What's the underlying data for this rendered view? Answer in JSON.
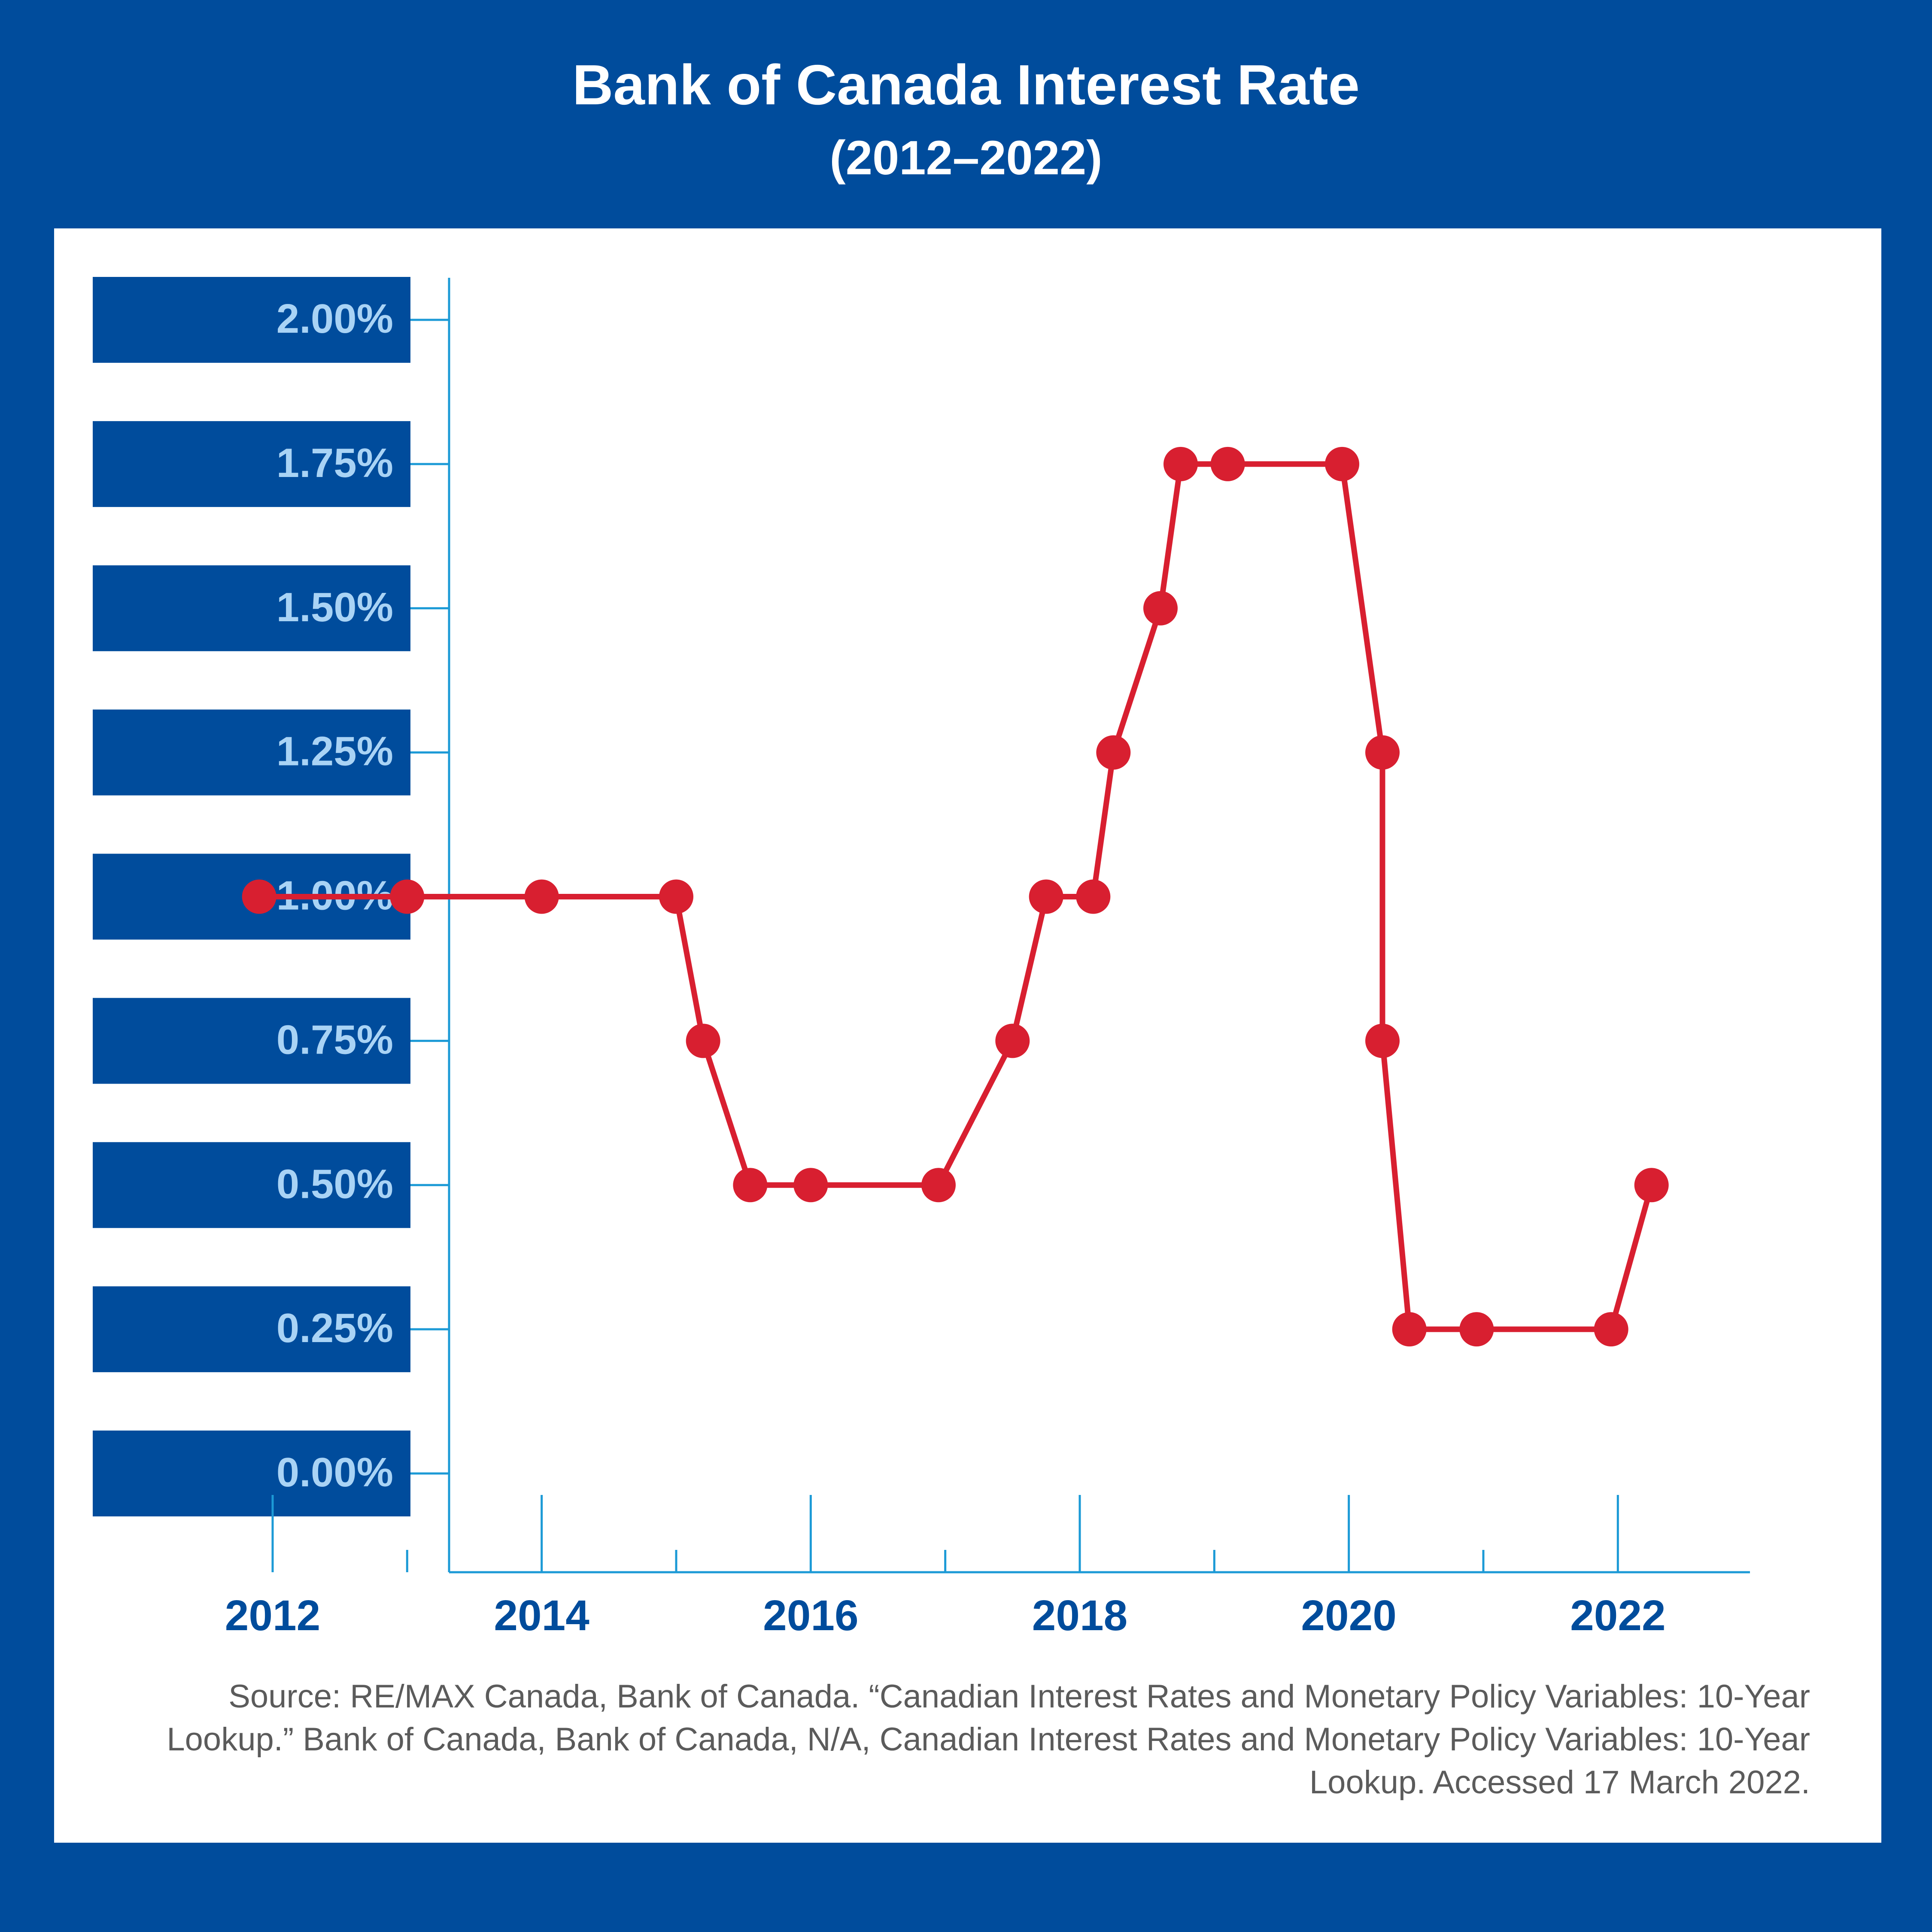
{
  "header": {
    "title": "Bank of Canada Interest Rate",
    "subtitle": "(2012–2022)"
  },
  "source_text": "Source: RE/MAX Canada, Bank of Canada. “Canadian Interest Rates and Monetary Policy Variables: 10-Year Lookup.” Bank of Canada, Bank of Canada, N/A, Canadian Interest Rates and Monetary Policy Variables: 10-Year Lookup. Accessed 17 March 2022.",
  "colors": {
    "background": "#004c9c",
    "label_box": "#004c9c",
    "label_text": "#a9d3f5",
    "axis": "#1c9ad6",
    "series": "#d81f30",
    "xtick_text": "#004c9c"
  },
  "chart_data": {
    "type": "line",
    "title": "Bank of Canada Interest Rate",
    "subtitle": "(2012–2022)",
    "xlabel": "",
    "ylabel": "",
    "xlim": [
      2010.95,
      2022.95
    ],
    "ylim": [
      0,
      2.0
    ],
    "grid": false,
    "legend": "none",
    "y_ticks": [
      0,
      0.25,
      0.5,
      0.75,
      1.0,
      1.25,
      1.5,
      1.75,
      2.0
    ],
    "y_tick_labels": [
      "0.00%",
      "0.25%",
      "0.50%",
      "0.75%",
      "1.00%",
      "1.25%",
      "1.50%",
      "1.75%",
      "2.00%"
    ],
    "x_major_ticks": [
      2012,
      2014,
      2016,
      2018,
      2020,
      2022
    ],
    "x_minor_ticks": [
      2013,
      2015,
      2017,
      2019,
      2021
    ],
    "x_tick_labels": [
      "2012",
      "2014",
      "2016",
      "2018",
      "2020",
      "2022"
    ],
    "series": [
      {
        "x": [
          2011.9,
          2013.0,
          2014.0,
          2015.0,
          2015.2,
          2015.55,
          2016.0,
          2016.95,
          2017.5,
          2017.75,
          2018.1,
          2018.25,
          2018.6,
          2018.75,
          2019.1,
          2019.95,
          2020.25,
          2020.25,
          2020.45,
          2020.95,
          2021.95,
          2022.25
        ],
        "y": [
          1.0,
          1.0,
          1.0,
          1.0,
          0.75,
          0.5,
          0.5,
          0.5,
          0.75,
          1.0,
          1.0,
          1.25,
          1.5,
          1.75,
          1.75,
          1.75,
          1.25,
          0.75,
          0.25,
          0.25,
          0.25,
          0.5
        ]
      }
    ]
  }
}
